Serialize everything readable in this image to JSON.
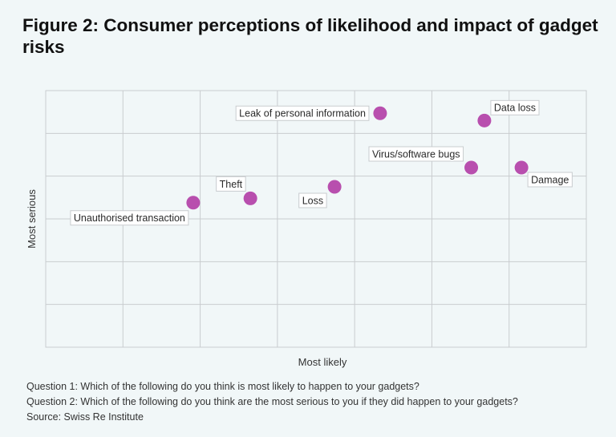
{
  "header": {
    "title": "Figure 2: Consumer perceptions of likelihood and impact of gadget risks"
  },
  "chart_data": {
    "type": "scatter",
    "title": "",
    "xlabel": "Most likely",
    "ylabel": "Most serious",
    "xlim": [
      0,
      7
    ],
    "ylim": [
      0,
      6
    ],
    "grid": true,
    "x_ticks_labeled": false,
    "y_ticks_labeled": false,
    "point_color": "#b84fae",
    "points": [
      {
        "label": "Unauthorised transaction",
        "x": 1.91,
        "y": 3.38
      },
      {
        "label": "Theft",
        "x": 2.65,
        "y": 3.48
      },
      {
        "label": "Loss",
        "x": 3.74,
        "y": 3.75
      },
      {
        "label": "Leak of personal information",
        "x": 4.33,
        "y": 5.47
      },
      {
        "label": "Virus/software bugs",
        "x": 5.51,
        "y": 4.2
      },
      {
        "label": "Data loss",
        "x": 5.68,
        "y": 5.3
      },
      {
        "label": "Damage",
        "x": 6.16,
        "y": 4.2
      }
    ]
  },
  "notes": {
    "question1": "Question 1: Which of the following do you think is most likely to happen to your gadgets?",
    "question2": "Question 2: Which of the following do you think are the most serious to you if they did happen to your gadgets?",
    "source": "Source: Swiss Re Institute"
  }
}
